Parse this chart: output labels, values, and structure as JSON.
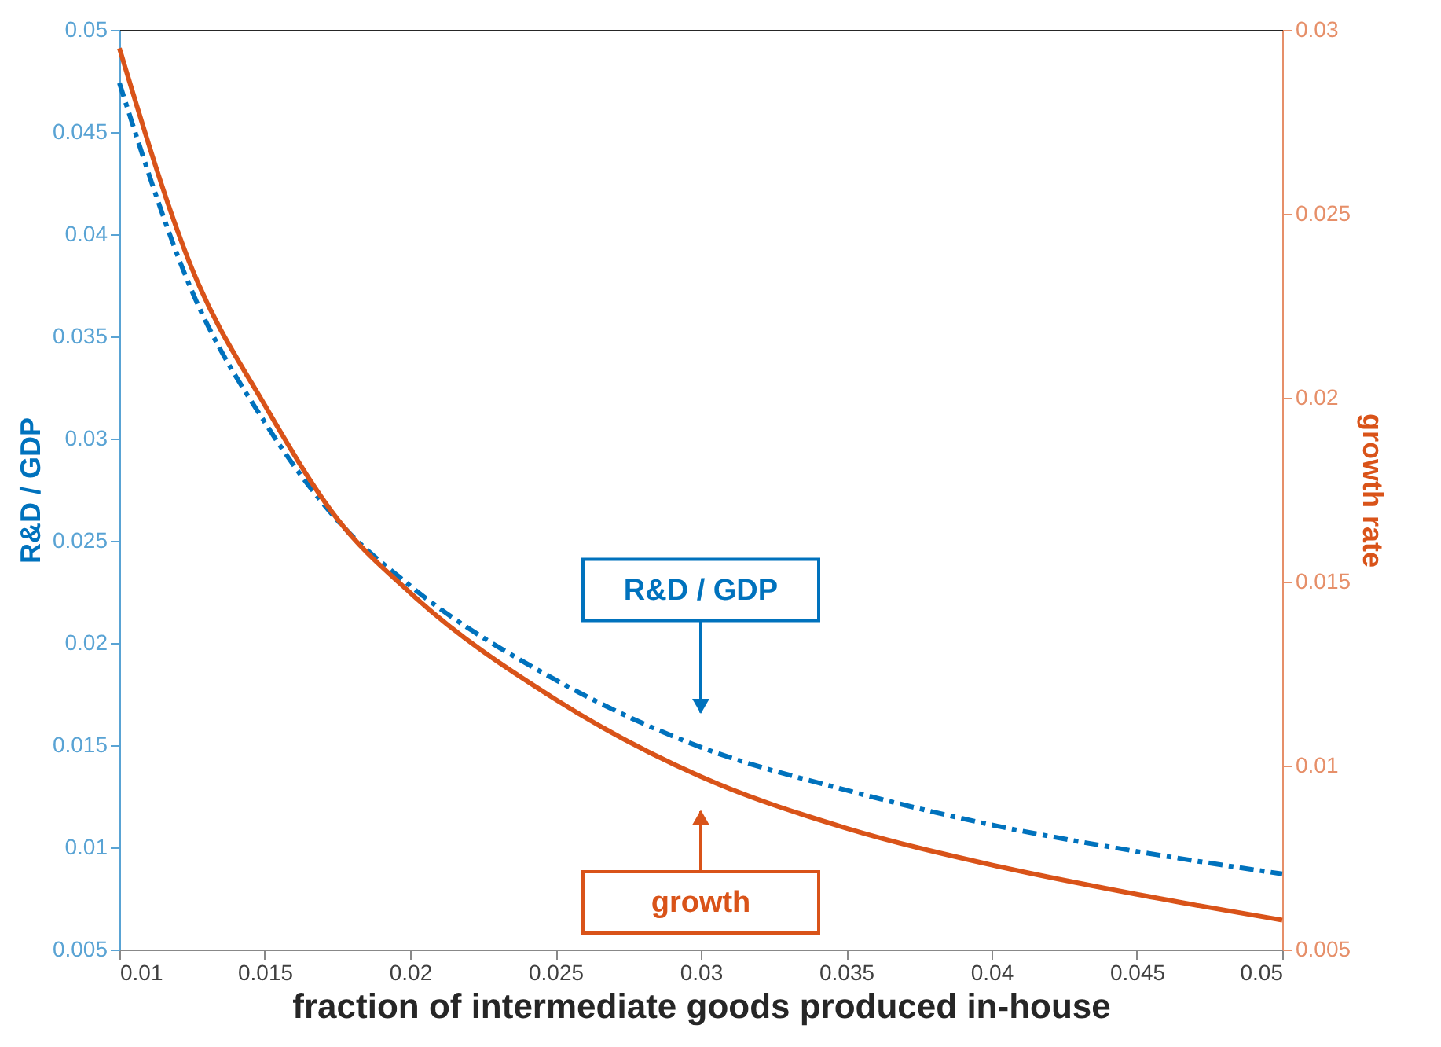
{
  "chart_data": {
    "type": "line",
    "xlabel": "fraction of intermediate goods produced in-house",
    "ylabel": "R&D / GDP",
    "y2label": "growth rate",
    "x": [
      0.01,
      0.0125,
      0.015,
      0.0175,
      0.02,
      0.025,
      0.03,
      0.035,
      0.04,
      0.045,
      0.05
    ],
    "series": [
      {
        "color": "#0072bd",
        "line_style": "dashed",
        "values": [
          0.0474,
          0.0372,
          0.0308,
          0.026,
          0.0228,
          0.0182,
          0.0149,
          0.0128,
          0.0111,
          0.0098,
          0.0087
        ]
      },
      {
        "color": "#d95319",
        "line_style": "solid",
        "axis": "y2",
        "values": [
          0.0295,
          0.0235,
          0.0198,
          0.0167,
          0.0147,
          0.0118,
          0.0097,
          0.0083,
          0.0073,
          0.0065,
          0.0058
        ]
      }
    ],
    "xlim": [
      0.01,
      0.05
    ],
    "xticks": [
      0.01,
      0.015,
      0.02,
      0.025,
      0.03,
      0.035,
      0.04,
      0.045,
      0.05
    ],
    "ylim": [
      0.005,
      0.05
    ],
    "yticks": [
      0.005,
      0.01,
      0.015,
      0.02,
      0.025,
      0.03,
      0.035,
      0.04,
      0.045,
      0.05
    ],
    "y2lim": [
      0.005,
      0.03
    ],
    "y2ticks": [
      0.005,
      0.01,
      0.015,
      0.02,
      0.025,
      0.03
    ],
    "annotations": [
      "R&D / GDP",
      "growth"
    ],
    "grid": false,
    "marker": "none"
  }
}
